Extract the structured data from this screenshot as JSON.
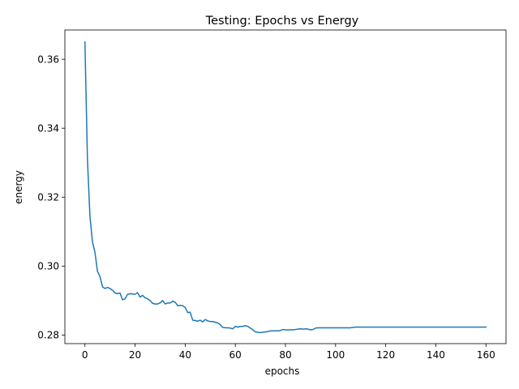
{
  "chart_data": {
    "type": "line",
    "title": "Testing: Epochs vs Energy",
    "xlabel": "epochs",
    "ylabel": "energy",
    "xlim": [
      -8,
      168
    ],
    "ylim": [
      0.2775,
      0.3685
    ],
    "xticks": [
      0,
      20,
      40,
      60,
      80,
      100,
      120,
      140,
      160
    ],
    "xtick_labels": [
      "0",
      "20",
      "40",
      "60",
      "80",
      "100",
      "120",
      "140",
      "160"
    ],
    "yticks": [
      0.28,
      0.3,
      0.32,
      0.34,
      0.36
    ],
    "ytick_labels": [
      "0.28",
      "0.30",
      "0.32",
      "0.34",
      "0.36"
    ],
    "grid": false,
    "colors": {
      "line": "#1f77b4"
    },
    "series": [
      {
        "x": [
          0,
          1,
          2,
          3,
          4,
          5,
          6,
          7,
          8,
          9,
          10,
          11,
          12,
          13,
          14,
          15,
          16,
          17,
          18,
          19,
          20,
          21,
          22,
          23,
          24,
          25,
          26,
          27,
          28,
          29,
          30,
          31,
          32,
          33,
          34,
          35,
          36,
          37,
          38,
          39,
          40,
          41,
          42,
          43,
          44,
          45,
          46,
          47,
          48,
          49,
          50,
          51,
          52,
          53,
          54,
          55,
          56,
          57,
          58,
          59,
          60,
          61,
          62,
          63,
          64,
          65,
          66,
          67,
          68,
          69,
          70,
          71,
          72,
          73,
          74,
          75,
          76,
          77,
          78,
          79,
          80,
          81,
          82,
          83,
          84,
          85,
          86,
          87,
          88,
          89,
          90,
          91,
          92,
          93,
          94,
          95,
          96,
          97,
          98,
          99,
          100,
          101,
          102,
          103,
          104,
          105,
          106,
          107,
          108,
          109,
          110,
          115,
          120,
          125,
          130,
          135,
          140,
          145,
          150,
          155,
          160
        ],
        "values": [
          0.365,
          0.331,
          0.3145,
          0.307,
          0.304,
          0.2985,
          0.297,
          0.294,
          0.2935,
          0.2938,
          0.2935,
          0.293,
          0.2922,
          0.292,
          0.2922,
          0.2902,
          0.2905,
          0.2918,
          0.292,
          0.2919,
          0.2918,
          0.2923,
          0.291,
          0.2915,
          0.2908,
          0.2905,
          0.29,
          0.2892,
          0.289,
          0.289,
          0.2893,
          0.29,
          0.289,
          0.2893,
          0.2893,
          0.2898,
          0.2895,
          0.2885,
          0.2886,
          0.2885,
          0.288,
          0.2865,
          0.2866,
          0.2843,
          0.2842,
          0.284,
          0.2843,
          0.2838,
          0.2845,
          0.2841,
          0.2839,
          0.2839,
          0.2837,
          0.2835,
          0.283,
          0.2822,
          0.2821,
          0.2821,
          0.282,
          0.2818,
          0.2825,
          0.2823,
          0.2825,
          0.2825,
          0.2827,
          0.2825,
          0.282,
          0.2815,
          0.2809,
          0.2808,
          0.2807,
          0.2808,
          0.2809,
          0.281,
          0.2812,
          0.2812,
          0.2812,
          0.2812,
          0.2813,
          0.2816,
          0.2815,
          0.2815,
          0.2815,
          0.2815,
          0.2816,
          0.2817,
          0.2818,
          0.2817,
          0.2818,
          0.2817,
          0.2815,
          0.2816,
          0.282,
          0.2821,
          0.2821,
          0.2821,
          0.2821,
          0.2821,
          0.2821,
          0.2821,
          0.2821,
          0.2821,
          0.2821,
          0.2821,
          0.2821,
          0.2821,
          0.2821,
          0.2822,
          0.2823,
          0.2823,
          0.2823,
          0.2823,
          0.2823,
          0.2823,
          0.2823,
          0.2823,
          0.2823,
          0.2823,
          0.2823,
          0.2823,
          0.2823
        ]
      }
    ]
  }
}
